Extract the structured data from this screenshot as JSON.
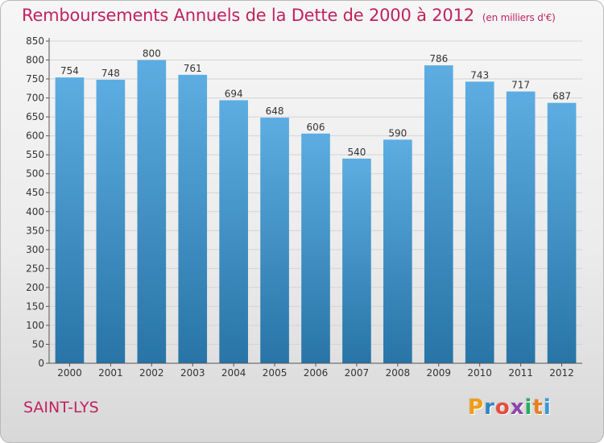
{
  "header": {
    "title": "Remboursements Annuels de la Dette de 2000 à 2012",
    "unit": "(en milliers d'€)"
  },
  "footer": {
    "commune": "SAINT-LYS",
    "logo_letters": [
      "P",
      "r",
      "o",
      "x",
      "i",
      "t",
      "i"
    ],
    "logo_colors": [
      "#f39c12",
      "#2e86c1",
      "#e74c3c",
      "#8e44ad",
      "#27ae60",
      "#e67e22",
      "#3498db"
    ]
  },
  "colors": {
    "title": "#c0235e",
    "bar_top": "#5dade2",
    "bar_bottom": "#2874a6",
    "grid": "#d4d4d4",
    "axis": "#555555"
  },
  "chart_data": {
    "type": "bar",
    "title": "Remboursements Annuels de la Dette de 2000 à 2012",
    "subtitle": "(en milliers d'€)",
    "xlabel": "",
    "ylabel": "",
    "categories": [
      "2000",
      "2001",
      "2002",
      "2003",
      "2004",
      "2005",
      "2006",
      "2007",
      "2008",
      "2009",
      "2010",
      "2011",
      "2012"
    ],
    "values": [
      754,
      748,
      800,
      761,
      694,
      648,
      606,
      540,
      590,
      786,
      743,
      717,
      687
    ],
    "ylim": [
      0,
      850
    ],
    "yticks": [
      0,
      50,
      100,
      150,
      200,
      250,
      300,
      350,
      400,
      450,
      500,
      550,
      600,
      650,
      700,
      750,
      800,
      850
    ],
    "grid": true,
    "legend": "none",
    "data_labels": true
  }
}
